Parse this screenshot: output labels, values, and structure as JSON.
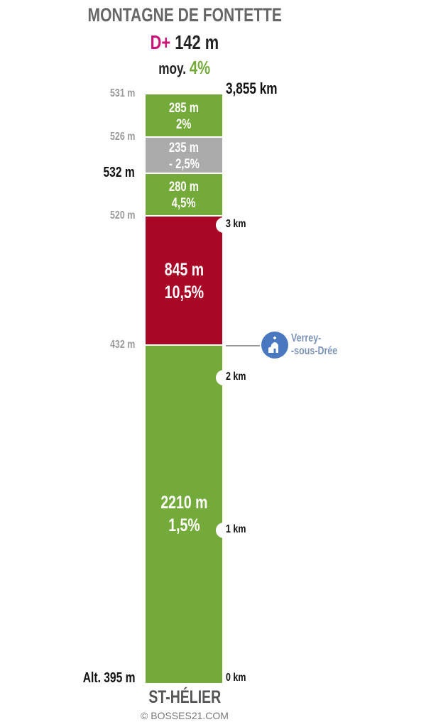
{
  "header": {
    "title": "MONTAGNE DE FONTETTE",
    "dplus_prefix": "D+",
    "dplus_value": "142 m",
    "avg_prefix": "moy.",
    "avg_value": "4%"
  },
  "footer": {
    "start_name": "ST-HÉLIER",
    "copyright": "© BOSSES21.COM"
  },
  "poi": {
    "label_line1": "Verrey-",
    "label_line2": "-sous-Drée",
    "icon": "church-icon",
    "at_km": 2.365
  },
  "total_distance_label": "3,855 km",
  "colors": {
    "green": "#74aa3a",
    "red": "#a80826",
    "grey": "#ababab",
    "dplus": "#cc1177",
    "poi": "#4a78c0"
  },
  "chart_data": {
    "type": "bar",
    "title": "MONTAGNE DE FONTETTE",
    "total_km": 3.855,
    "segments": [
      {
        "length_m": 2210,
        "length_label": "2210 m",
        "grade_label": "1,5%",
        "grade": 1.5,
        "color": "green"
      },
      {
        "length_m": 845,
        "length_label": "845 m",
        "grade_label": "10,5%",
        "grade": 10.5,
        "color": "red"
      },
      {
        "length_m": 280,
        "length_label": "280 m",
        "grade_label": "4,5%",
        "grade": 4.5,
        "color": "green"
      },
      {
        "length_m": 235,
        "length_label": "235 m",
        "grade_label": "- 2,5%",
        "grade": -2.5,
        "color": "grey"
      },
      {
        "length_m": 285,
        "length_label": "285 m",
        "grade_label": "2%",
        "grade": 2,
        "color": "green"
      }
    ],
    "altitudes": [
      {
        "label": "Alt. 395 m",
        "at_m": 0,
        "style": "black"
      },
      {
        "label": "432 m",
        "at_m": 2210,
        "style": "grey"
      },
      {
        "label": "520 m",
        "at_m": 3055,
        "style": "grey"
      },
      {
        "label": "532 m",
        "at_m": 3335,
        "style": "black"
      },
      {
        "label": "526 m",
        "at_m": 3570,
        "style": "grey"
      },
      {
        "label": "531 m",
        "at_m": 3855,
        "style": "grey"
      }
    ],
    "km_marks": [
      {
        "label": "0 km",
        "km": 0,
        "notch": false
      },
      {
        "label": "1 km",
        "km": 1,
        "notch": true
      },
      {
        "label": "2 km",
        "km": 2,
        "notch": true
      },
      {
        "label": "3 km",
        "km": 3,
        "notch": true
      }
    ]
  }
}
